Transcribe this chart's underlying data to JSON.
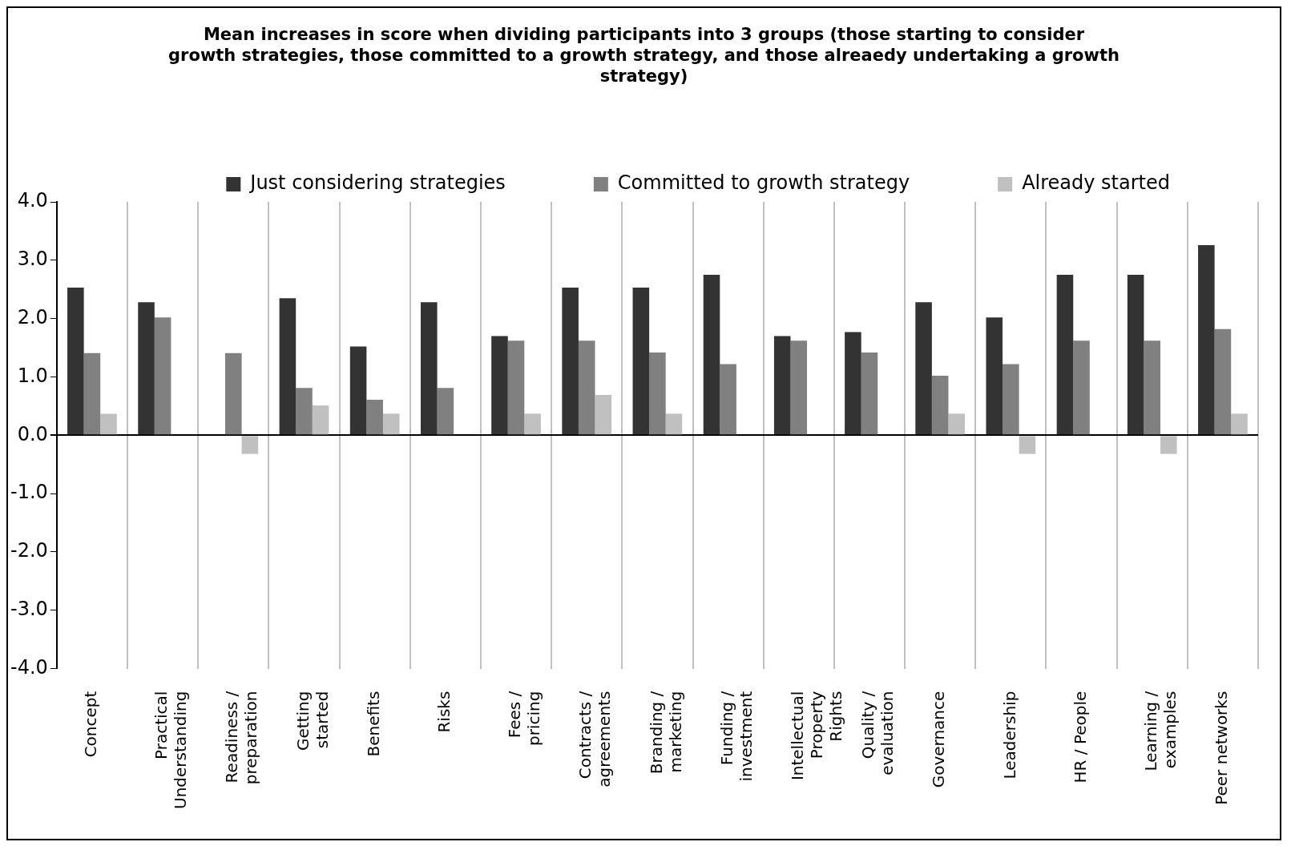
{
  "chart_data": {
    "type": "bar",
    "title": "Mean increases in score when dividing participants into 3 groups (those starting to consider growth strategies, those committed to a growth strategy, and those alreaedy undertaking a growth strategy)",
    "categories": [
      "Concept",
      "Practical Understanding",
      "Readiness / preparation",
      "Getting started",
      "Benefits",
      "Risks",
      "Fees / pricing",
      "Contracts / agreements",
      "Branding / marketing",
      "Funding / investment",
      "Intellectual Property Rights",
      "Quality / evaluation",
      "Governance",
      "Leadership",
      "HR / People",
      "Learning / examples",
      "Peer networks"
    ],
    "series": [
      {
        "name": "Just considering strategies",
        "color": "#333333",
        "values": [
          2.53,
          2.28,
          0,
          2.35,
          1.52,
          2.28,
          1.7,
          2.53,
          2.53,
          2.75,
          1.7,
          1.77,
          2.28,
          2.02,
          2.75,
          2.75,
          3.26
        ]
      },
      {
        "name": "Committed to growth strategy",
        "color": "#808080",
        "values": [
          1.41,
          2.02,
          1.41,
          0.81,
          0.61,
          0.81,
          1.62,
          1.62,
          1.42,
          1.22,
          1.62,
          1.42,
          1.02,
          1.22,
          1.62,
          1.62,
          1.82
        ]
      },
      {
        "name": "Already started",
        "color": "#c0c0c0",
        "values": [
          0.37,
          0,
          -0.32,
          0.51,
          0.37,
          0,
          0.37,
          0.69,
          0.37,
          0,
          0,
          0,
          0.37,
          -0.32,
          0,
          -0.32,
          0.37
        ]
      }
    ],
    "ylim": [
      -4,
      4
    ],
    "yticks": [
      {
        "value": -4,
        "label": "-4.0"
      },
      {
        "value": -3,
        "label": "-3.0"
      },
      {
        "value": -2,
        "label": "-2.0"
      },
      {
        "value": -1,
        "label": "-1.0"
      },
      {
        "value": 0,
        "label": "0.0"
      },
      {
        "value": 1,
        "label": "1.0"
      },
      {
        "value": 2,
        "label": "2.0"
      },
      {
        "value": 3,
        "label": "3.0"
      },
      {
        "value": 4,
        "label": "4.0"
      }
    ],
    "grid": "x",
    "legend": "top"
  }
}
